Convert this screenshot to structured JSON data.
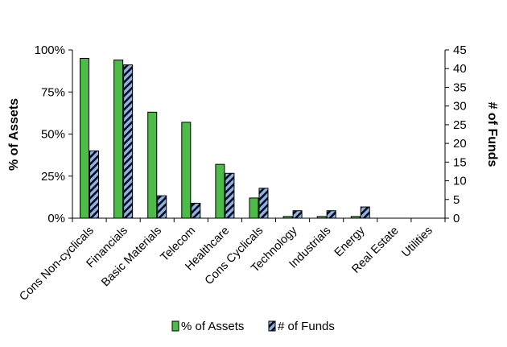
{
  "chart_data": {
    "type": "bar",
    "categories": [
      "Cons Non-cyclicals",
      "Financials",
      "Basic Materials",
      "Telecom",
      "Healthcare",
      "Cons Cyclicals",
      "Technology",
      "Industrials",
      "Energy",
      "Real Estate",
      "Utilities"
    ],
    "series": [
      {
        "name": "% of Assets",
        "axis": "left",
        "color": "#4cbb47",
        "values": [
          95,
          94,
          63,
          57,
          32,
          12,
          1,
          1,
          1,
          0,
          0
        ]
      },
      {
        "name": "# of Funds",
        "axis": "right",
        "color": "#8fb4e3",
        "pattern": "black diagonal stripes",
        "values": [
          18,
          41,
          6,
          4,
          12,
          8,
          2,
          2,
          3,
          0,
          0
        ]
      }
    ],
    "ylabel": "% of Assets",
    "y2label": "# of Funds",
    "ylim": [
      0,
      100
    ],
    "y2lim": [
      0,
      45
    ],
    "yticks": [
      "0%",
      "25%",
      "50%",
      "75%",
      "100%"
    ],
    "y2ticks": [
      "0",
      "5",
      "10",
      "15",
      "20",
      "25",
      "30",
      "35",
      "40",
      "45"
    ],
    "grid": false,
    "legend": "bottom"
  }
}
